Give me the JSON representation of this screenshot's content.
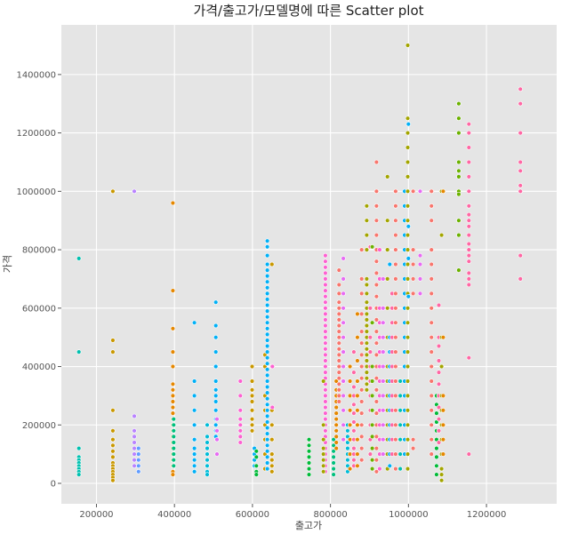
{
  "chart_data": {
    "type": "scatter",
    "title": "가격/출고가/모델명에 따른 Scatter plot",
    "xlabel": "출고가",
    "ylabel": "가격",
    "xlim": [
      110000,
      1380000
    ],
    "ylim": [
      -70000,
      1570000
    ],
    "xticks": [
      200000,
      400000,
      600000,
      800000,
      1000000,
      1200000
    ],
    "yticks": [
      0,
      200000,
      400000,
      600000,
      800000,
      1000000,
      1200000,
      1400000
    ],
    "grid": true,
    "legend": "none",
    "background": "#e5e5e5",
    "point_edge": "#ffffff",
    "palette": [
      "#f8766d",
      "#e58700",
      "#c99800",
      "#a3a500",
      "#6bb100",
      "#00ba38",
      "#00bf7d",
      "#00c0af",
      "#00bcd8",
      "#00b0f6",
      "#619cff",
      "#b983ff",
      "#e76bf3",
      "#fd61d1",
      "#ff67a4"
    ],
    "columns": [
      {
        "x": 155000,
        "color": "#00c0af",
        "values": [
          770000,
          450000,
          120000,
          90000,
          80000,
          70000,
          60000,
          50000,
          40000,
          30000
        ]
      },
      {
        "x": 242000,
        "color": "#c99800",
        "values": [
          1000000,
          490000,
          450000,
          250000,
          180000,
          150000,
          130000,
          110000,
          90000,
          70000,
          60000,
          50000,
          40000,
          30000,
          20000,
          10000
        ]
      },
      {
        "x": 297000,
        "color": "#b983ff",
        "values": [
          1000000,
          230000,
          180000,
          160000,
          140000,
          120000,
          100000,
          80000,
          60000
        ]
      },
      {
        "x": 308000,
        "color": "#619cff",
        "values": [
          120000,
          100000,
          80000,
          60000,
          40000
        ]
      },
      {
        "x": 396000,
        "color": "#e58700",
        "values": [
          960000,
          660000,
          530000,
          450000,
          400000,
          340000,
          320000,
          300000,
          280000,
          260000,
          240000,
          220000,
          200000,
          180000,
          160000,
          140000,
          120000,
          100000,
          80000,
          60000,
          40000,
          30000
        ]
      },
      {
        "x": 398000,
        "color": "#00bf7d",
        "values": [
          220000,
          200000,
          180000,
          160000,
          140000,
          120000,
          100000,
          80000,
          60000
        ]
      },
      {
        "x": 451000,
        "color": "#00b0f6",
        "values": [
          550000,
          350000,
          300000,
          250000,
          200000,
          150000,
          120000,
          100000,
          80000,
          60000,
          40000
        ]
      },
      {
        "x": 484000,
        "color": "#00bcd8",
        "values": [
          200000,
          160000,
          140000,
          120000,
          100000,
          80000,
          60000,
          40000,
          30000
        ]
      },
      {
        "x": 506000,
        "color": "#00b0f6",
        "values": [
          620000,
          540000,
          500000,
          450000,
          400000,
          350000,
          320000,
          300000,
          280000,
          250000,
          220000,
          200000,
          180000,
          160000
        ]
      },
      {
        "x": 509000,
        "color": "#e76bf3",
        "values": [
          220000,
          180000,
          150000,
          100000
        ]
      },
      {
        "x": 569000,
        "color": "#fd61d1",
        "values": [
          350000,
          300000,
          250000,
          220000,
          200000,
          180000,
          160000,
          140000
        ]
      },
      {
        "x": 599000,
        "color": "#c99800",
        "values": [
          400000,
          350000,
          320000,
          300000,
          280000,
          250000,
          220000,
          200000,
          180000
        ]
      },
      {
        "x": 605000,
        "color": "#00b0f6",
        "values": [
          120000,
          100000,
          80000,
          60000
        ]
      },
      {
        "x": 610000,
        "color": "#00ba38",
        "values": [
          110000,
          90000,
          60000,
          40000,
          30000
        ]
      },
      {
        "x": 632000,
        "color": "#c99800",
        "values": [
          440000,
          400000,
          300000,
          250000,
          200000,
          150000,
          100000,
          50000
        ]
      },
      {
        "x": 638000,
        "color": "#00b0f6",
        "values": [
          830000,
          810000,
          780000,
          750000,
          730000,
          710000,
          690000,
          670000,
          650000,
          630000,
          610000,
          590000,
          570000,
          550000,
          530000,
          510000,
          490000,
          470000,
          450000,
          430000,
          410000,
          390000,
          370000,
          350000,
          330000,
          310000,
          290000,
          270000,
          250000,
          230000,
          210000,
          190000,
          170000,
          150000,
          130000,
          110000,
          90000,
          70000,
          50000
        ]
      },
      {
        "x": 650000,
        "color": "#c99800",
        "values": [
          750000,
          400000,
          250000,
          200000,
          150000,
          100000,
          80000,
          60000,
          40000
        ]
      },
      {
        "x": 651000,
        "color": "#fd61d1",
        "values": [
          400000,
          260000
        ]
      },
      {
        "x": 745000,
        "color": "#00ba38",
        "values": [
          150000,
          130000,
          110000,
          90000,
          70000,
          50000,
          30000
        ]
      },
      {
        "x": 787000,
        "color": "#fd61d1",
        "values": [
          780000,
          760000,
          740000,
          720000,
          700000,
          680000,
          660000,
          640000,
          620000,
          600000,
          580000,
          560000,
          540000,
          520000,
          500000,
          480000,
          460000,
          440000,
          420000,
          400000,
          380000,
          360000,
          340000,
          320000,
          300000,
          280000,
          260000,
          240000,
          220000,
          200000,
          180000,
          160000,
          140000,
          120000,
          100000,
          80000,
          60000,
          40000
        ]
      },
      {
        "x": 782000,
        "color": "#a3a500",
        "values": [
          350000,
          200000,
          150000,
          120000,
          100000,
          80000,
          60000,
          40000
        ]
      },
      {
        "x": 808000,
        "color": "#00bf7d",
        "values": [
          150000,
          130000,
          110000,
          90000,
          70000,
          50000,
          30000
        ]
      },
      {
        "x": 815000,
        "color": "#e58700",
        "values": [
          350000,
          320000,
          300000,
          280000,
          260000,
          240000,
          220000,
          200000,
          180000,
          160000,
          140000,
          120000
        ]
      },
      {
        "x": 822000,
        "color": "#f8766d",
        "values": [
          730000,
          680000,
          650000,
          620000,
          600000,
          580000,
          560000,
          540000,
          520000,
          500000,
          480000,
          460000,
          440000,
          420000,
          400000,
          380000,
          360000,
          340000,
          320000,
          300000,
          280000
        ]
      },
      {
        "x": 833000,
        "color": "#e76bf3",
        "values": [
          770000,
          700000,
          650000,
          600000,
          550000,
          500000,
          450000,
          400000,
          350000,
          300000,
          250000,
          200000,
          150000
        ]
      },
      {
        "x": 844000,
        "color": "#00bcd8",
        "values": [
          200000,
          180000,
          160000,
          140000,
          120000,
          100000,
          80000,
          60000,
          40000
        ]
      },
      {
        "x": 850000,
        "color": "#e58700",
        "values": [
          400000,
          350000,
          300000,
          250000,
          200000,
          150000,
          100000,
          50000
        ]
      },
      {
        "x": 860000,
        "color": "#ff67a4",
        "values": [
          450000,
          380000,
          330000,
          300000,
          270000,
          240000,
          210000,
          180000,
          150000,
          120000,
          100000,
          80000,
          60000
        ]
      },
      {
        "x": 869000,
        "color": "#e58700",
        "values": [
          580000,
          500000,
          420000,
          350000,
          300000,
          250000,
          200000,
          150000,
          100000,
          60000
        ]
      },
      {
        "x": 880000,
        "color": "#f8766d",
        "values": [
          800000,
          700000,
          650000,
          580000,
          520000,
          480000,
          440000,
          400000,
          360000,
          320000,
          280000,
          240000,
          200000,
          160000,
          120000,
          80000
        ]
      },
      {
        "x": 893000,
        "color": "#a3a500",
        "values": [
          950000,
          900000,
          850000,
          800000,
          700000,
          680000,
          650000,
          620000,
          600000,
          580000,
          560000,
          540000,
          520000,
          500000,
          480000,
          460000,
          440000,
          420000,
          400000,
          380000,
          360000,
          340000,
          320000
        ]
      },
      {
        "x": 902000,
        "color": "#ff67a4",
        "values": [
          810000,
          600000,
          500000,
          450000,
          400000,
          350000,
          300000,
          250000,
          200000,
          150000,
          100000
        ]
      },
      {
        "x": 907000,
        "color": "#6bb100",
        "values": [
          810000,
          550000,
          400000,
          350000,
          300000,
          250000,
          200000,
          160000,
          120000,
          80000,
          50000
        ]
      },
      {
        "x": 918000,
        "color": "#f8766d",
        "values": [
          1100000,
          1000000,
          950000,
          900000,
          850000,
          800000,
          760000,
          720000,
          680000,
          640000,
          600000,
          560000,
          520000,
          480000,
          440000,
          400000,
          360000,
          320000,
          280000,
          240000,
          200000,
          160000,
          120000,
          80000,
          40000
        ]
      },
      {
        "x": 926000,
        "color": "#fd61d1",
        "values": [
          800000,
          700000,
          600000,
          550000,
          500000,
          450000,
          400000,
          350000,
          300000,
          250000,
          200000,
          150000,
          100000,
          50000
        ]
      },
      {
        "x": 935000,
        "color": "#e76bf3",
        "values": [
          700000,
          600000,
          550000,
          500000,
          450000,
          400000,
          350000,
          300000,
          250000,
          200000,
          150000,
          100000
        ]
      },
      {
        "x": 946000,
        "color": "#a3a500",
        "values": [
          1050000,
          900000,
          800000,
          700000,
          600000,
          500000,
          400000,
          350000,
          300000,
          250000,
          200000,
          150000,
          100000,
          50000
        ]
      },
      {
        "x": 952000,
        "color": "#00b0f6",
        "values": [
          750000,
          500000,
          450000,
          400000,
          350000,
          300000,
          250000,
          200000,
          150000,
          100000,
          60000
        ]
      },
      {
        "x": 958000,
        "color": "#ff67a4",
        "values": [
          650000,
          600000,
          550000,
          500000,
          450000,
          400000,
          350000,
          300000,
          250000,
          200000,
          150000,
          100000
        ]
      },
      {
        "x": 967000,
        "color": "#f8766d",
        "values": [
          1000000,
          950000,
          900000,
          850000,
          800000,
          750000,
          700000,
          650000,
          600000,
          550000,
          500000,
          450000,
          400000,
          350000,
          300000,
          250000,
          200000,
          150000,
          100000,
          50000
        ]
      },
      {
        "x": 979000,
        "color": "#00c0af",
        "values": [
          350000,
          300000,
          250000,
          200000,
          150000,
          100000,
          50000
        ]
      },
      {
        "x": 990000,
        "color": "#00b0f6",
        "values": [
          1000000,
          950000,
          900000,
          850000,
          800000,
          750000,
          700000,
          650000,
          600000,
          550000,
          500000,
          450000,
          400000,
          350000,
          300000,
          250000,
          200000,
          150000,
          100000
        ]
      },
      {
        "x": 998000,
        "color": "#a3a500",
        "values": [
          1500000,
          1250000,
          1200000,
          1150000,
          1100000,
          1050000,
          1000000,
          950000,
          900000,
          850000,
          800000,
          750000,
          700000,
          650000,
          600000,
          550000,
          500000,
          450000,
          400000,
          350000,
          300000,
          250000,
          200000,
          150000,
          100000,
          50000
        ]
      },
      {
        "x": 1000000,
        "color": "#00b0f6",
        "values": [
          1230000,
          880000,
          770000,
          640000
        ]
      },
      {
        "x": 1012000,
        "color": "#f8766d",
        "values": [
          1000000,
          800000,
          750000,
          700000,
          650000,
          150000,
          120000
        ]
      },
      {
        "x": 1030000,
        "color": "#e76bf3",
        "values": [
          1000000,
          780000,
          750000,
          700000,
          650000
        ]
      },
      {
        "x": 1059000,
        "color": "#f8766d",
        "values": [
          1000000,
          950000,
          900000,
          800000,
          750000,
          700000,
          650000,
          600000,
          550000,
          500000,
          450000,
          400000,
          350000,
          300000,
          250000,
          200000,
          150000,
          100000
        ]
      },
      {
        "x": 1072000,
        "color": "#00ba38",
        "values": [
          300000,
          270000,
          240000,
          210000,
          180000,
          150000,
          120000,
          90000,
          60000,
          30000
        ]
      },
      {
        "x": 1078000,
        "color": "#ff67a4",
        "values": [
          610000,
          500000,
          470000,
          420000,
          380000,
          340000,
          300000,
          260000,
          220000,
          180000,
          140000
        ]
      },
      {
        "x": 1085000,
        "color": "#a3a500",
        "values": [
          1000000,
          850000,
          500000,
          400000,
          300000,
          250000,
          200000,
          150000,
          100000,
          50000,
          30000,
          10000
        ]
      },
      {
        "x": 1089000,
        "color": "#e58700",
        "values": [
          1000000,
          500000,
          300000,
          250000,
          200000,
          150000,
          100000
        ]
      },
      {
        "x": 1129000,
        "color": "#6bb100",
        "values": [
          1300000,
          1250000,
          1200000,
          1100000,
          1070000,
          1050000,
          1000000,
          990000,
          900000,
          850000,
          730000
        ]
      },
      {
        "x": 1155000,
        "color": "#ff67a4",
        "values": [
          1230000,
          1200000,
          1150000,
          1100000,
          1050000,
          1000000,
          950000,
          920000,
          900000,
          880000,
          850000,
          820000,
          800000,
          780000,
          760000,
          720000,
          700000,
          680000,
          430000,
          100000
        ]
      },
      {
        "x": 1287000,
        "color": "#ff67a4",
        "values": [
          1350000,
          1300000,
          1200000,
          1100000,
          1070000,
          1020000,
          1000000,
          780000,
          700000
        ]
      }
    ]
  }
}
